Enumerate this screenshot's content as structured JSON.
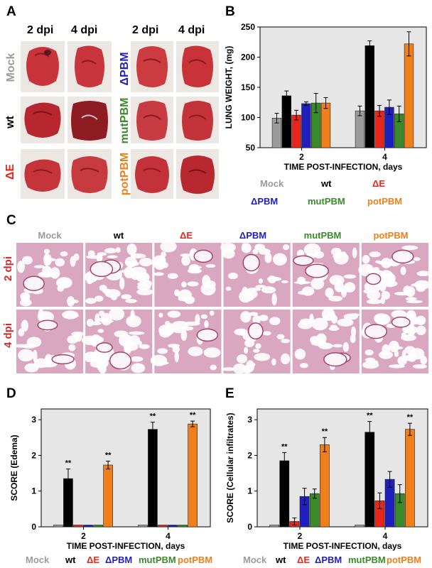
{
  "panels": {
    "A": "A",
    "B": "B",
    "C": "C",
    "D": "D",
    "E": "E"
  },
  "colors": {
    "Mock": "#9b9b9b",
    "wt": "#000000",
    "dE": "#e8261c",
    "dPBM": "#1f1fbd",
    "mutPBM": "#3a8a2a",
    "potPBM": "#ee7f1b",
    "dpi_label": "#d72b2b",
    "plot_bg": "#e6e6e6",
    "lung_bg": "#eae4e0"
  },
  "panel_a": {
    "dpi_2": "2 dpi",
    "dpi_4": "4 dpi",
    "dpi_2b": "2 dpi",
    "dpi_4b": "4 dpi",
    "left_rows": [
      "Mock",
      "wt",
      "ΔE"
    ],
    "right_rows": [
      "ΔPBM",
      "mutPBM",
      "potPBM"
    ]
  },
  "panel_c": {
    "columns": [
      "Mock",
      "wt",
      "ΔE",
      "ΔPBM",
      "mutPBM",
      "potPBM"
    ],
    "rows": [
      "2 dpi",
      "4 dpi"
    ]
  },
  "legend_b": [
    "Mock",
    "wt",
    "ΔE",
    "ΔPBM",
    "mutPBM",
    "potPBM"
  ],
  "legend_bottom": [
    "Mock",
    "wt",
    "ΔE",
    "ΔPBM",
    "mutPBM",
    "potPBM"
  ],
  "chart_data": [
    {
      "id": "B",
      "type": "bar",
      "ylabel": "LUNG WEIGHT, (mg)",
      "xlabel": "TIME POST-INFECTION, days",
      "categories": [
        "2",
        "4"
      ],
      "ylim": [
        50,
        250
      ],
      "yticks": [
        50,
        100,
        150,
        200,
        250
      ],
      "series": [
        {
          "name": "Mock",
          "values": [
            99,
            111
          ],
          "errors": [
            8,
            8
          ]
        },
        {
          "name": "wt",
          "values": [
            136,
            219
          ],
          "errors": [
            8,
            8
          ]
        },
        {
          "name": "ΔE",
          "values": [
            104,
            111
          ],
          "errors": [
            8,
            9
          ]
        },
        {
          "name": "ΔPBM",
          "values": [
            123,
            117
          ],
          "errors": [
            3,
            12
          ]
        },
        {
          "name": "mutPBM",
          "values": [
            124,
            106
          ],
          "errors": [
            16,
            13
          ]
        },
        {
          "name": "potPBM",
          "values": [
            124,
            222
          ],
          "errors": [
            9,
            20
          ]
        }
      ],
      "significance": [
        [],
        []
      ]
    },
    {
      "id": "D",
      "type": "bar",
      "ylabel": "SCORE (Edema)",
      "xlabel": "TIME POST-INFECTION, days",
      "categories": [
        "2",
        "4"
      ],
      "ylim": [
        0,
        3.3
      ],
      "yticks": [
        0,
        1,
        2,
        3
      ],
      "series": [
        {
          "name": "Mock",
          "values": [
            0.05,
            0.05
          ],
          "errors": [
            0,
            0
          ]
        },
        {
          "name": "wt",
          "values": [
            1.35,
            2.73
          ],
          "errors": [
            0.27,
            0.2
          ]
        },
        {
          "name": "ΔE",
          "values": [
            0.05,
            0.05
          ],
          "errors": [
            0,
            0
          ]
        },
        {
          "name": "ΔPBM",
          "values": [
            0.05,
            0.05
          ],
          "errors": [
            0,
            0
          ]
        },
        {
          "name": "mutPBM",
          "values": [
            0.05,
            0.05
          ],
          "errors": [
            0,
            0
          ]
        },
        {
          "name": "potPBM",
          "values": [
            1.73,
            2.88
          ],
          "errors": [
            0.11,
            0.08
          ]
        }
      ],
      "significance": [
        [
          "",
          "**",
          "",
          "",
          "",
          "**"
        ],
        [
          "",
          "**",
          "",
          "",
          "",
          "**"
        ]
      ]
    },
    {
      "id": "E",
      "type": "bar",
      "ylabel": "SCORE (Cellular infiltrates)",
      "xlabel": "TIME POST-INFECTION, days",
      "categories": [
        "2",
        "4"
      ],
      "ylim": [
        0,
        3.3
      ],
      "yticks": [
        0,
        1,
        2,
        3
      ],
      "series": [
        {
          "name": "Mock",
          "values": [
            0.05,
            0.05
          ],
          "errors": [
            0,
            0
          ]
        },
        {
          "name": "wt",
          "values": [
            1.85,
            2.65
          ],
          "errors": [
            0.23,
            0.3
          ]
        },
        {
          "name": "ΔE",
          "values": [
            0.15,
            0.73
          ],
          "errors": [
            0.1,
            0.22
          ]
        },
        {
          "name": "ΔPBM",
          "values": [
            0.85,
            1.33
          ],
          "errors": [
            0.23,
            0.22
          ]
        },
        {
          "name": "mutPBM",
          "values": [
            0.93,
            0.93
          ],
          "errors": [
            0.13,
            0.25
          ]
        },
        {
          "name": "potPBM",
          "values": [
            2.3,
            2.73
          ],
          "errors": [
            0.2,
            0.17
          ]
        }
      ],
      "significance": [
        [
          "",
          "**",
          "",
          "",
          "",
          "**"
        ],
        [
          "",
          "**",
          "",
          "",
          "",
          "**"
        ]
      ]
    }
  ]
}
